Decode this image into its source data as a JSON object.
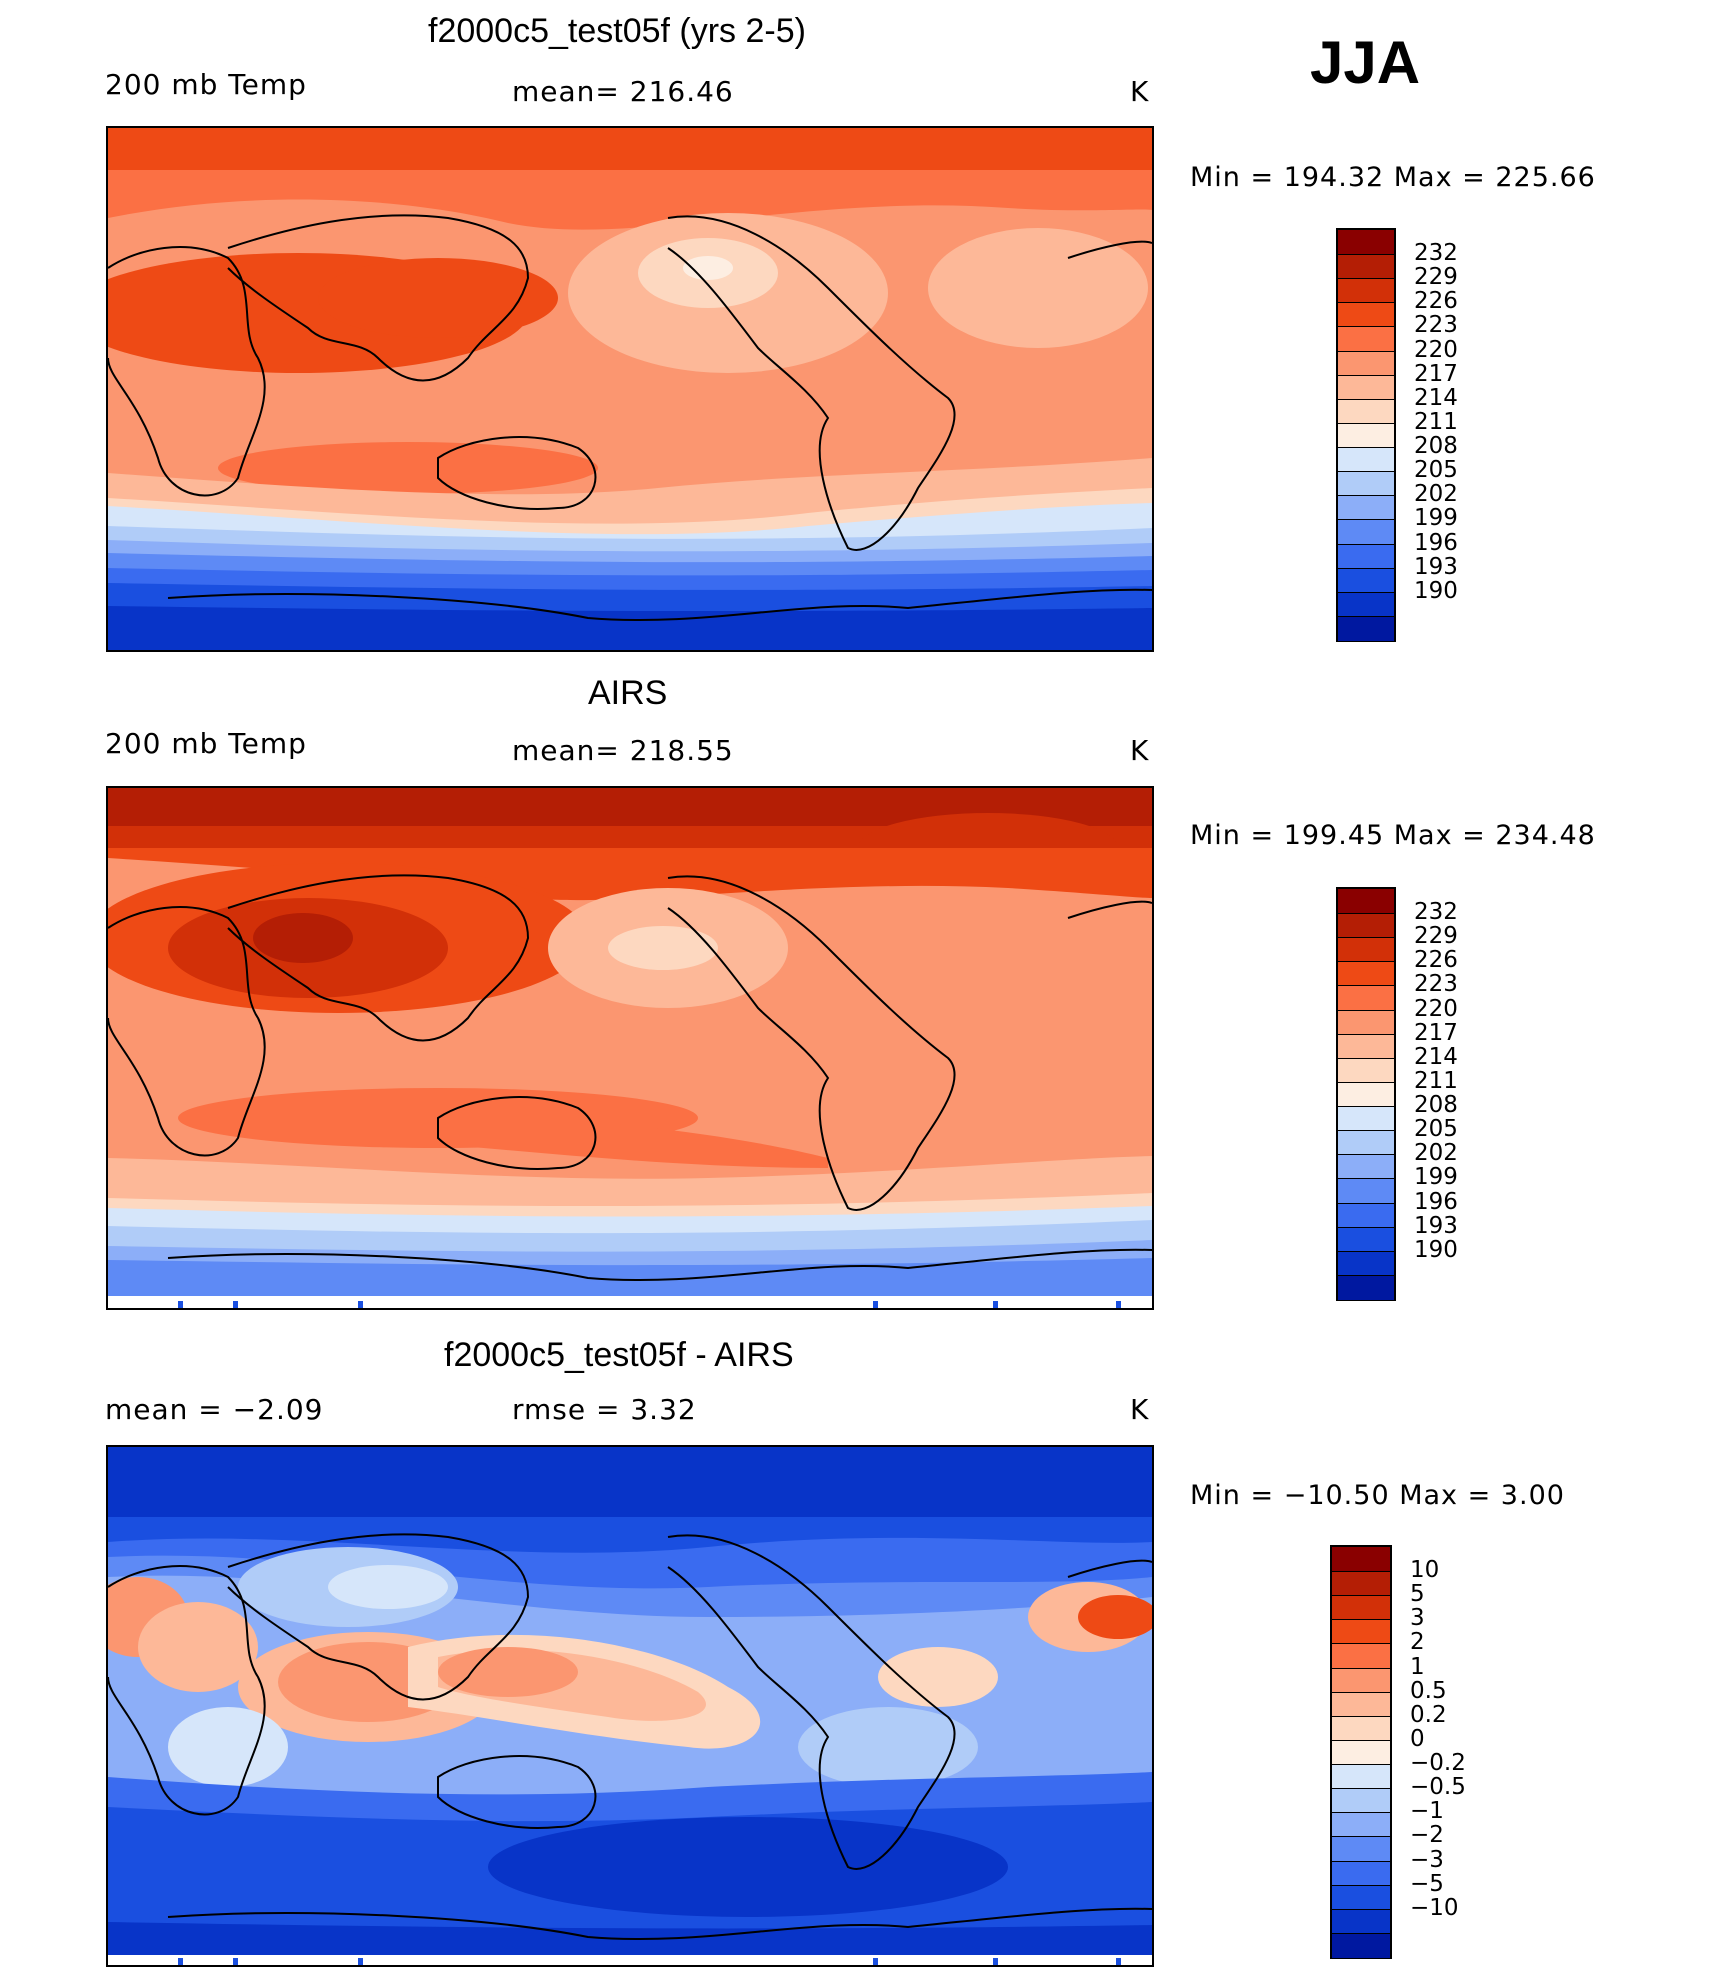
{
  "season": "JJA",
  "colors": {
    "warm_dark": "#8a0000",
    "warm": "#e8481c",
    "mid_warm": "#f7a680",
    "cool": "#1a4fe0",
    "cool_dark": "#00008a"
  },
  "panels": [
    {
      "id": "model",
      "title": "f2000c5_test05f (yrs 2-5)",
      "left_label": "200 mb Temp",
      "center_label": "mean=  216.46",
      "right_label": "K",
      "minmax": "Min  =  194.32  Max  =  225.66",
      "legend": {
        "labels": [
          "232",
          "229",
          "226",
          "223",
          "220",
          "217",
          "214",
          "211",
          "208",
          "205",
          "202",
          "199",
          "196",
          "193",
          "190"
        ],
        "colors": [
          "#8a0000",
          "#b41e05",
          "#d23008",
          "#ee4a15",
          "#fb7044",
          "#fb9670",
          "#fdb898",
          "#fdd8c0",
          "#fdeee2",
          "#d6e6fa",
          "#b0ccf8",
          "#8caef8",
          "#5e8af5",
          "#3a6bf0",
          "#1a4fe0",
          "#0834c8",
          "#0018a0"
        ]
      }
    },
    {
      "id": "obs",
      "title": "AIRS",
      "left_label": "200 mb Temp",
      "center_label": "mean=  218.55",
      "right_label": "K",
      "minmax": "Min  =  199.45  Max  =  234.48",
      "legend": {
        "labels": [
          "232",
          "229",
          "226",
          "223",
          "220",
          "217",
          "214",
          "211",
          "208",
          "205",
          "202",
          "199",
          "196",
          "193",
          "190"
        ],
        "colors": [
          "#8a0000",
          "#b41e05",
          "#d23008",
          "#ee4a15",
          "#fb7044",
          "#fb9670",
          "#fdb898",
          "#fdd8c0",
          "#fdeee2",
          "#d6e6fa",
          "#b0ccf8",
          "#8caef8",
          "#5e8af5",
          "#3a6bf0",
          "#1a4fe0",
          "#0834c8",
          "#0018a0"
        ]
      }
    },
    {
      "id": "diff",
      "title": "f2000c5_test05f - AIRS",
      "left_label": "mean  =    −2.09",
      "center_label": "rmse  =      3.32",
      "right_label": "K",
      "minmax": "Min  =  −10.50  Max  =       3.00",
      "legend": {
        "labels": [
          "10",
          "5",
          "3",
          "2",
          "1",
          "0.5",
          "0.2",
          "0",
          "−0.2",
          "−0.5",
          "−1",
          "−2",
          "−3",
          "−5",
          "−10"
        ],
        "colors": [
          "#8a0000",
          "#b41e05",
          "#d23008",
          "#ee4a15",
          "#fb7044",
          "#fb9670",
          "#fdb898",
          "#fdd8c0",
          "#fdeee2",
          "#d6e6fa",
          "#b0ccf8",
          "#8caef8",
          "#5e8af5",
          "#3a6bf0",
          "#1a4fe0",
          "#0834c8",
          "#0018a0"
        ]
      }
    }
  ]
}
